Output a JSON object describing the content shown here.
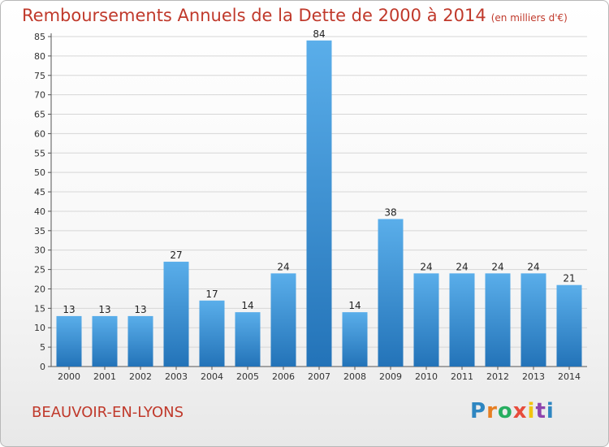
{
  "header": {
    "title": "Remboursements Annuels de la Dette de 2000 à 2014",
    "unit": "(en milliers d'€)"
  },
  "footer": {
    "town": "BEAUVOIR-EN-LYONS",
    "logo_letters": [
      "P",
      "r",
      "o",
      "x",
      "i",
      "t",
      "i"
    ],
    "logo_colors": [
      "#2e86c1",
      "#e67e22",
      "#27ae60",
      "#e74c3c",
      "#f1c40f",
      "#8e44ad",
      "#2e86c1"
    ]
  },
  "chart_data": {
    "type": "bar",
    "title": "Remboursements Annuels de la Dette de 2000 à 2014",
    "xlabel": "",
    "ylabel": "",
    "categories": [
      "2000",
      "2001",
      "2002",
      "2003",
      "2004",
      "2005",
      "2006",
      "2007",
      "2008",
      "2009",
      "2010",
      "2011",
      "2012",
      "2013",
      "2014"
    ],
    "values": [
      13,
      13,
      13,
      27,
      17,
      14,
      24,
      84,
      14,
      38,
      24,
      24,
      24,
      24,
      21
    ],
    "ylim": [
      0,
      85
    ],
    "yticks": [
      0,
      5,
      10,
      15,
      20,
      25,
      30,
      35,
      40,
      45,
      50,
      55,
      60,
      65,
      70,
      75,
      80,
      85
    ],
    "grid": true,
    "bar_color": "#3a8fd6"
  }
}
